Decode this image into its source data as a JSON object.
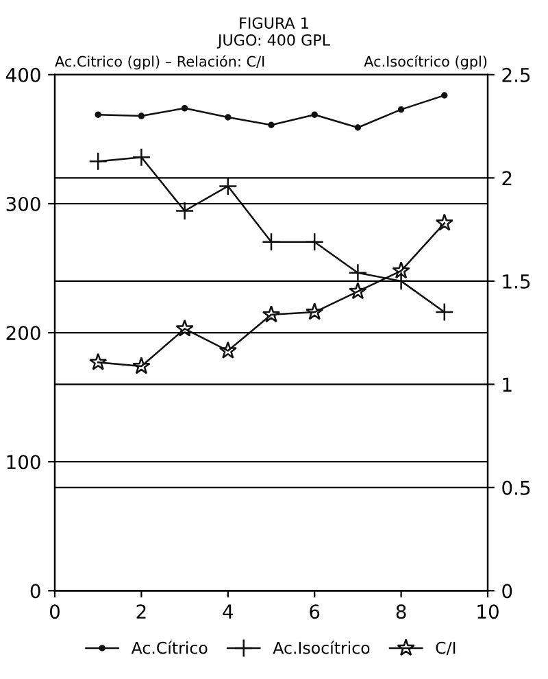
{
  "chart_data": {
    "type": "line",
    "title": "FIGURA 1",
    "subtitle": "JUGO: 400 GPL",
    "ylabel": "Ac.Citrico (gpl) – Relación: C/I",
    "y2label": "Ac.Isocítrico (gpl)",
    "x": [
      1,
      2,
      3,
      4,
      5,
      6,
      7,
      8,
      9
    ],
    "series": [
      {
        "name": "Ac.Cítrico",
        "color": "#111111",
        "marker": "circle",
        "values": [
          369,
          368,
          374,
          367,
          361,
          369,
          359,
          373,
          384
        ]
      },
      {
        "name": "Ac.Isocítrico",
        "color": "#111111",
        "marker": "cross",
        "axis": "y2",
        "values": [
          2.08,
          2.1,
          1.84,
          1.96,
          1.69,
          1.69,
          1.54,
          1.5,
          1.35
        ]
      },
      {
        "name": "C/I",
        "color": "#111111",
        "marker": "star",
        "values": [
          177,
          174,
          203,
          186,
          214,
          216,
          232,
          248,
          285
        ]
      }
    ],
    "xlim": [
      0,
      10
    ],
    "xticks": [
      0,
      2,
      4,
      6,
      8,
      10
    ],
    "ylim": [
      0,
      400
    ],
    "yticks": [
      0,
      100,
      200,
      300,
      400
    ],
    "y2lim": [
      0,
      2.5
    ],
    "y2ticks": [
      0,
      0.5,
      1,
      1.5,
      2,
      2.5
    ],
    "grid": "y",
    "legend": "bottom",
    "line_style": "solid"
  }
}
